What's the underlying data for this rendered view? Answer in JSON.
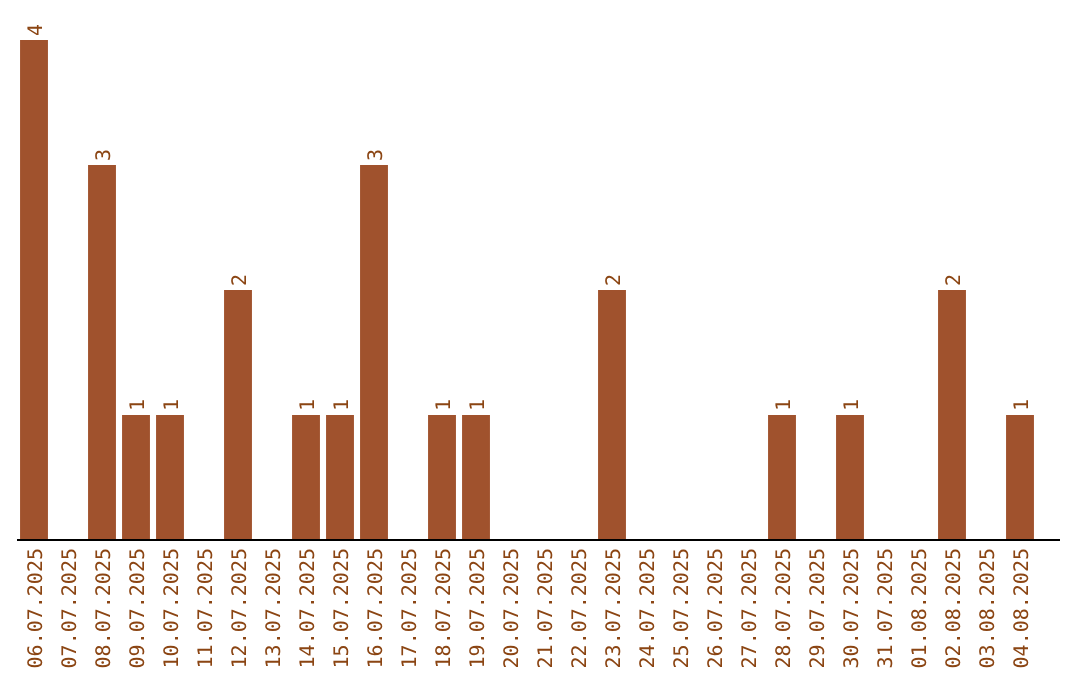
{
  "chart_data": {
    "type": "bar",
    "categories": [
      "06.07.2025",
      "07.07.2025",
      "08.07.2025",
      "09.07.2025",
      "10.07.2025",
      "11.07.2025",
      "12.07.2025",
      "13.07.2025",
      "14.07.2025",
      "15.07.2025",
      "16.07.2025",
      "17.07.2025",
      "18.07.2025",
      "19.07.2025",
      "20.07.2025",
      "21.07.2025",
      "22.07.2025",
      "23.07.2025",
      "24.07.2025",
      "25.07.2025",
      "26.07.2025",
      "27.07.2025",
      "28.07.2025",
      "29.07.2025",
      "30.07.2025",
      "31.07.2025",
      "01.08.2025",
      "02.08.2025",
      "03.08.2025",
      "04.08.2025"
    ],
    "values": [
      4,
      0,
      3,
      1,
      1,
      0,
      2,
      0,
      1,
      1,
      3,
      0,
      1,
      1,
      0,
      0,
      0,
      2,
      0,
      0,
      0,
      0,
      1,
      0,
      1,
      0,
      0,
      2,
      0,
      1
    ],
    "value_labels": [
      "4",
      null,
      "3",
      "1",
      "1",
      null,
      "2",
      null,
      "1",
      "1",
      "3",
      null,
      "1",
      "1",
      null,
      null,
      null,
      "2",
      null,
      null,
      null,
      null,
      "1",
      null,
      "1",
      null,
      null,
      "2",
      null,
      "1"
    ],
    "color": "#a0522d",
    "ylim": [
      0,
      4
    ],
    "tick_labels": "x"
  }
}
